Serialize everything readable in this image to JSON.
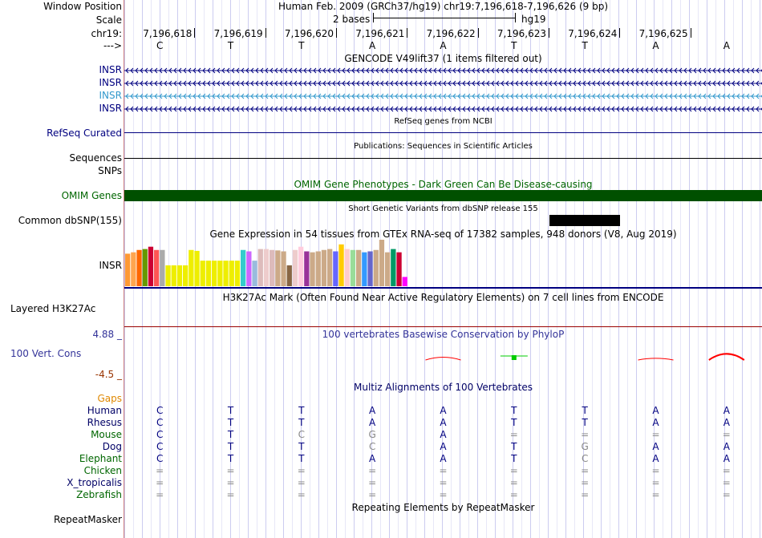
{
  "left_labels": {
    "window_position": "Window Position",
    "scale": "Scale",
    "chrom": "chr19:",
    "strand": "--->",
    "tx1": "INSR",
    "tx2": "INSR",
    "tx3": "INSR",
    "tx4": "INSR",
    "refseq": "RefSeq Curated",
    "sequences": "Sequences",
    "snps": "SNPs",
    "omim": "OMIM Genes",
    "dbsnp": "Common dbSNP(155)",
    "gtex_gene": "INSR",
    "h3k27ac": "Layered H3K27Ac",
    "phylop_max": "4.88 _",
    "cons": "100 Vert. Cons",
    "phylop_min": "-4.5 _",
    "gaps": "Gaps",
    "repeatmasker": "RepeatMasker"
  },
  "header": {
    "position": "Human Feb. 2009 (GRCh37/hg19)   chr19:7,196,618-7,196,626 (9 bp)",
    "scale_text": "2 bases",
    "assembly": "hg19"
  },
  "ruler": {
    "positions": [
      "7,196,618",
      "7,196,619",
      "7,196,620",
      "7,196,621",
      "7,196,622",
      "7,196,623",
      "7,196,624",
      "7,196,625"
    ],
    "bases": [
      "C",
      "T",
      "T",
      "A",
      "A",
      "T",
      "T",
      "A",
      "A"
    ]
  },
  "tracks": {
    "gencode": "GENCODE V49lift37 (1 items filtered out)",
    "refseq": "RefSeq genes from NCBI",
    "publications": "Publications: Sequences in Scientific Articles",
    "omim": "OMIM Gene Phenotypes - Dark Green Can Be Disease-causing",
    "dbsnp": "Short Genetic Variants from dbSNP release 155",
    "gtex": "Gene Expression in 54 tissues from GTEx RNA-seq of 17382 samples, 948 donors (V8, Aug 2019)",
    "h3k27ac": "H3K27Ac Mark (Often Found Near Active Regulatory Elements) on 7 cell lines from ENCODE",
    "phylop": "100 vertebrates Basewise Conservation by PhyloP",
    "multiz": "Multiz Alignments of 100 Vertebrates",
    "repeatmasker": "Repeating Elements by RepeatMasker"
  },
  "gtex_bars": [
    {
      "v": 0.7,
      "c": "#ff9933"
    },
    {
      "v": 0.73,
      "c": "#ffa54f"
    },
    {
      "v": 0.78,
      "c": "#ff6600"
    },
    {
      "v": 0.8,
      "c": "#669900"
    },
    {
      "v": 0.85,
      "c": "#cc0033"
    },
    {
      "v": 0.78,
      "c": "#ff5555"
    },
    {
      "v": 0.78,
      "c": "#aaaaaa"
    },
    {
      "v": 0.45,
      "c": "#eeee00"
    },
    {
      "v": 0.45,
      "c": "#eeee00"
    },
    {
      "v": 0.45,
      "c": "#eeee00"
    },
    {
      "v": 0.45,
      "c": "#eeee00"
    },
    {
      "v": 0.78,
      "c": "#eeee00"
    },
    {
      "v": 0.76,
      "c": "#eeee00"
    },
    {
      "v": 0.55,
      "c": "#eeee00"
    },
    {
      "v": 0.55,
      "c": "#eeee00"
    },
    {
      "v": 0.55,
      "c": "#eeee00"
    },
    {
      "v": 0.55,
      "c": "#eeee00"
    },
    {
      "v": 0.55,
      "c": "#eeee00"
    },
    {
      "v": 0.55,
      "c": "#eeee00"
    },
    {
      "v": 0.55,
      "c": "#eeee00"
    },
    {
      "v": 0.78,
      "c": "#33cccc"
    },
    {
      "v": 0.75,
      "c": "#cc66ff"
    },
    {
      "v": 0.55,
      "c": "#99bbdd"
    },
    {
      "v": 0.8,
      "c": "#ddbbbb"
    },
    {
      "v": 0.8,
      "c": "#eecccc"
    },
    {
      "v": 0.78,
      "c": "#ddbbbb"
    },
    {
      "v": 0.77,
      "c": "#ccaa88"
    },
    {
      "v": 0.75,
      "c": "#ccaa88"
    },
    {
      "v": 0.45,
      "c": "#886644"
    },
    {
      "v": 0.78,
      "c": "#eecccc"
    },
    {
      "v": 0.85,
      "c": "#ffccdd"
    },
    {
      "v": 0.75,
      "c": "#993399"
    },
    {
      "v": 0.73,
      "c": "#ccaa88"
    },
    {
      "v": 0.75,
      "c": "#ccaa88"
    },
    {
      "v": 0.78,
      "c": "#ccaa88"
    },
    {
      "v": 0.8,
      "c": "#ccaa88"
    },
    {
      "v": 0.75,
      "c": "#6666ff"
    },
    {
      "v": 0.9,
      "c": "#ffcc00"
    },
    {
      "v": 0.8,
      "c": "#ffcccc"
    },
    {
      "v": 0.78,
      "c": "#99dd99"
    },
    {
      "v": 0.78,
      "c": "#ccaa88"
    },
    {
      "v": 0.73,
      "c": "#3399ff"
    },
    {
      "v": 0.75,
      "c": "#6666cc"
    },
    {
      "v": 0.78,
      "c": "#ccaa88"
    },
    {
      "v": 1.0,
      "c": "#ccaa88"
    },
    {
      "v": 0.73,
      "c": "#ccaa88"
    },
    {
      "v": 0.8,
      "c": "#009966"
    },
    {
      "v": 0.73,
      "c": "#cc0033"
    },
    {
      "v": 0.2,
      "c": "#ff00ff"
    }
  ],
  "phylop_peaks": [
    {
      "pos": 4,
      "h": 0.25,
      "c": "#ff0000"
    },
    {
      "pos": 5,
      "h": 0.4,
      "c": "#00cc00"
    },
    {
      "pos": 7,
      "h": 0.15,
      "c": "#ff0000"
    },
    {
      "pos": 8,
      "h": 0.55,
      "c": "#ff0000"
    }
  ],
  "species": [
    {
      "name": "Gaps",
      "color": "#e08800",
      "bases": []
    },
    {
      "name": "Human",
      "color": "#000066",
      "bases": [
        "C",
        "T",
        "T",
        "A",
        "A",
        "T",
        "T",
        "A",
        "A"
      ]
    },
    {
      "name": "Rhesus",
      "color": "#000066",
      "bases": [
        "C",
        "T",
        "T",
        "A",
        "A",
        "T",
        "T",
        "A",
        "A"
      ]
    },
    {
      "name": "Mouse",
      "color": "#006600",
      "bases": [
        "C",
        "T",
        "C",
        "G",
        "A",
        "=",
        "=",
        "=",
        "="
      ]
    },
    {
      "name": "Dog",
      "color": "#000066",
      "bases": [
        "C",
        "T",
        "T",
        "C",
        "A",
        "T",
        "G",
        "A",
        "A"
      ]
    },
    {
      "name": "Elephant",
      "color": "#006600",
      "bases": [
        "C",
        "T",
        "T",
        "A",
        "A",
        "T",
        "C",
        "A",
        "A"
      ]
    },
    {
      "name": "Chicken",
      "color": "#006600",
      "bases": [
        "=",
        "=",
        "=",
        "=",
        "=",
        "=",
        "=",
        "=",
        "="
      ]
    },
    {
      "name": "X_tropicalis",
      "color": "#000066",
      "bases": [
        "=",
        "=",
        "=",
        "=",
        "=",
        "=",
        "=",
        "=",
        "="
      ]
    },
    {
      "name": "Zebrafish",
      "color": "#006600",
      "bases": [
        "=",
        "=",
        "=",
        "=",
        "=",
        "=",
        "=",
        "=",
        "="
      ]
    }
  ],
  "colors": {
    "gene": "#000080",
    "gene_highlight": "#3399cc",
    "omim": "#005000",
    "gtex_line": "#000080",
    "h3k27ac_line": "#990000",
    "phylop_title": "#333399",
    "phylop_min": "#993300",
    "base_mismatch": "#888888"
  }
}
